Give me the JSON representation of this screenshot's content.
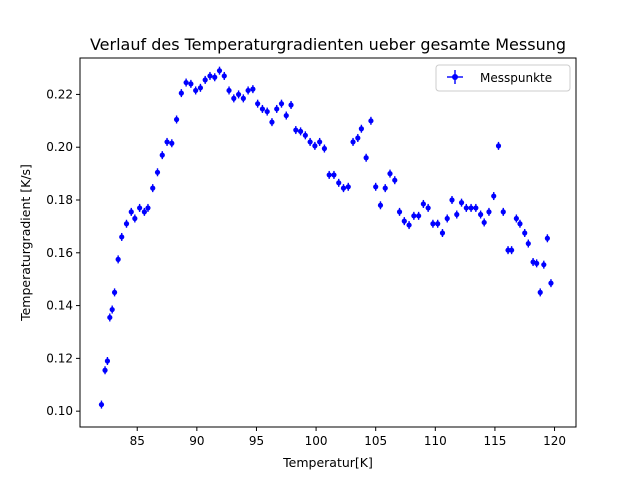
{
  "chart_data": {
    "type": "scatter",
    "title": "Verlauf des Temperaturgradienten ueber gesamte Messung",
    "xlabel": "Temperatur[K]",
    "ylabel": "Temperaturgradient [K/s]",
    "xlim": [
      80.2,
      121.8
    ],
    "ylim": [
      0.094,
      0.2338
    ],
    "xticks": [
      85,
      90,
      95,
      100,
      105,
      110,
      115,
      120
    ],
    "yticks": [
      0.1,
      0.12,
      0.14,
      0.16,
      0.18,
      0.2,
      0.22
    ],
    "xtick_labels": [
      "85",
      "90",
      "95",
      "100",
      "105",
      "110",
      "115",
      "120"
    ],
    "ytick_labels": [
      "0.10",
      "0.12",
      "0.14",
      "0.16",
      "0.18",
      "0.20",
      "0.22"
    ],
    "grid": false,
    "legend_position": "top-right",
    "error_bars": "small vertical and horizontal",
    "color": "#0000ff",
    "series": [
      {
        "name": "Messpunkte",
        "points": [
          [
            82.0,
            0.1025
          ],
          [
            82.3,
            0.1155
          ],
          [
            82.5,
            0.119
          ],
          [
            82.7,
            0.1355
          ],
          [
            82.9,
            0.1385
          ],
          [
            83.1,
            0.145
          ],
          [
            83.4,
            0.1575
          ],
          [
            83.7,
            0.166
          ],
          [
            84.1,
            0.171
          ],
          [
            84.5,
            0.1755
          ],
          [
            84.8,
            0.173
          ],
          [
            85.2,
            0.177
          ],
          [
            85.6,
            0.1755
          ],
          [
            85.9,
            0.177
          ],
          [
            86.3,
            0.1845
          ],
          [
            86.7,
            0.1905
          ],
          [
            87.1,
            0.197
          ],
          [
            87.5,
            0.202
          ],
          [
            87.9,
            0.2015
          ],
          [
            88.3,
            0.2105
          ],
          [
            88.7,
            0.2205
          ],
          [
            89.1,
            0.2245
          ],
          [
            89.5,
            0.224
          ],
          [
            89.9,
            0.2215
          ],
          [
            90.3,
            0.2225
          ],
          [
            90.7,
            0.2255
          ],
          [
            91.1,
            0.227
          ],
          [
            91.5,
            0.2265
          ],
          [
            91.9,
            0.229
          ],
          [
            92.3,
            0.227
          ],
          [
            92.7,
            0.2215
          ],
          [
            93.1,
            0.2185
          ],
          [
            93.5,
            0.22
          ],
          [
            93.9,
            0.2185
          ],
          [
            94.3,
            0.2215
          ],
          [
            94.7,
            0.222
          ],
          [
            95.1,
            0.2165
          ],
          [
            95.5,
            0.2145
          ],
          [
            95.9,
            0.2135
          ],
          [
            96.3,
            0.2095
          ],
          [
            96.7,
            0.2145
          ],
          [
            97.1,
            0.2165
          ],
          [
            97.5,
            0.212
          ],
          [
            97.9,
            0.216
          ],
          [
            98.3,
            0.2065
          ],
          [
            98.7,
            0.206
          ],
          [
            99.1,
            0.2045
          ],
          [
            99.5,
            0.202
          ],
          [
            99.9,
            0.2005
          ],
          [
            100.3,
            0.202
          ],
          [
            100.7,
            0.1995
          ],
          [
            101.1,
            0.1895
          ],
          [
            101.5,
            0.1895
          ],
          [
            101.9,
            0.1865
          ],
          [
            102.3,
            0.1845
          ],
          [
            102.7,
            0.185
          ],
          [
            103.1,
            0.202
          ],
          [
            103.5,
            0.2035
          ],
          [
            103.8,
            0.207
          ],
          [
            104.2,
            0.196
          ],
          [
            104.6,
            0.21
          ],
          [
            105.0,
            0.185
          ],
          [
            105.4,
            0.178
          ],
          [
            105.8,
            0.1845
          ],
          [
            106.2,
            0.19
          ],
          [
            106.6,
            0.1875
          ],
          [
            107.0,
            0.1755
          ],
          [
            107.4,
            0.172
          ],
          [
            107.8,
            0.1705
          ],
          [
            108.2,
            0.174
          ],
          [
            108.6,
            0.174
          ],
          [
            109.0,
            0.1785
          ],
          [
            109.4,
            0.177
          ],
          [
            109.8,
            0.171
          ],
          [
            110.2,
            0.171
          ],
          [
            110.6,
            0.1675
          ],
          [
            111.0,
            0.173
          ],
          [
            111.4,
            0.18
          ],
          [
            111.8,
            0.1745
          ],
          [
            112.2,
            0.179
          ],
          [
            112.6,
            0.177
          ],
          [
            113.0,
            0.177
          ],
          [
            113.4,
            0.177
          ],
          [
            113.8,
            0.1745
          ],
          [
            114.1,
            0.1715
          ],
          [
            114.5,
            0.1755
          ],
          [
            114.9,
            0.1815
          ],
          [
            115.3,
            0.2005
          ],
          [
            115.7,
            0.1755
          ],
          [
            116.1,
            0.161
          ],
          [
            116.4,
            0.161
          ],
          [
            116.8,
            0.173
          ],
          [
            117.1,
            0.171
          ],
          [
            117.5,
            0.1675
          ],
          [
            117.8,
            0.1635
          ],
          [
            118.2,
            0.1565
          ],
          [
            118.5,
            0.156
          ],
          [
            118.8,
            0.145
          ],
          [
            119.1,
            0.1555
          ],
          [
            119.4,
            0.1655
          ],
          [
            119.7,
            0.1485
          ]
        ]
      }
    ]
  }
}
